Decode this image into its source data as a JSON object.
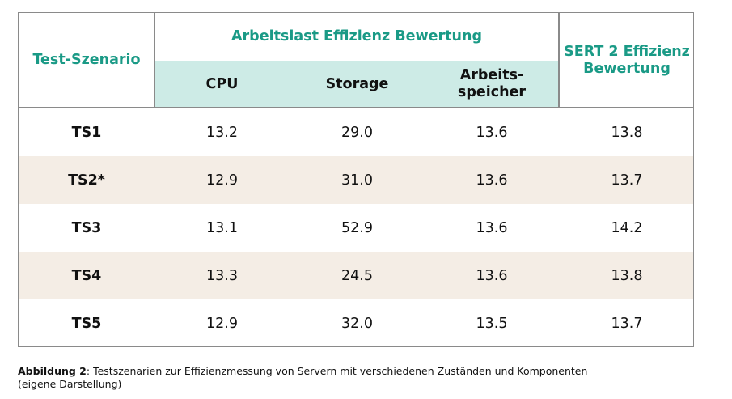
{
  "header": {
    "scenario": "Test-Szenario",
    "workload_group": "Arbeitslast Effizienz Bewertung",
    "sub_cpu": "CPU",
    "sub_storage": "Storage",
    "sub_memory_1": "Arbeits-",
    "sub_memory_2": "speicher",
    "sert_1": "SERT 2 Effizienz",
    "sert_2": "Bewertung"
  },
  "rows": [
    {
      "scenario": "TS1",
      "cpu": "13.2",
      "storage": "29.0",
      "memory": "13.6",
      "sert": "13.8"
    },
    {
      "scenario": "TS2*",
      "cpu": "12.9",
      "storage": "31.0",
      "memory": "13.6",
      "sert": "13.7"
    },
    {
      "scenario": "TS3",
      "cpu": "13.1",
      "storage": "52.9",
      "memory": "13.6",
      "sert": "14.2"
    },
    {
      "scenario": "TS4",
      "cpu": "13.3",
      "storage": "24.5",
      "memory": "13.6",
      "sert": "13.8"
    },
    {
      "scenario": "TS5",
      "cpu": "12.9",
      "storage": "32.0",
      "memory": "13.5",
      "sert": "13.7"
    }
  ],
  "caption": {
    "label": "Abbildung 2",
    "text": ": Testszenarien zur Effizienzmessung von Servern mit verschiedenen Zuständen und Komponenten",
    "text_2": "(eigene Darstellung)"
  },
  "colors": {
    "accent_teal": "#1a9a86",
    "subheader_band": "#cdebe6",
    "alt_row": "#f4ede5",
    "border": "#8a8a8a"
  }
}
